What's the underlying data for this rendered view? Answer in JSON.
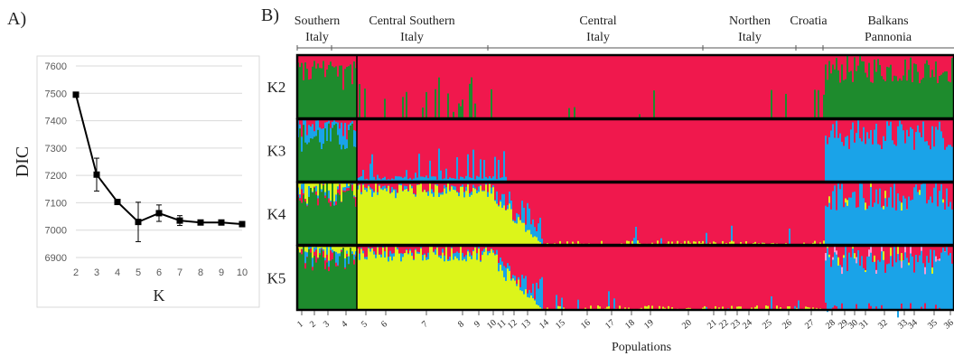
{
  "panels": {
    "a_label": "A)",
    "b_label": "B)"
  },
  "chart_data": [
    {
      "type": "line",
      "xlabel": "K",
      "ylabel": "DIC",
      "x": [
        2,
        3,
        4,
        5,
        6,
        7,
        8,
        9,
        10
      ],
      "series": [
        {
          "values": [
            7495,
            7203,
            7103,
            7030,
            7062,
            7035,
            7028,
            7028,
            7022
          ],
          "error": [
            0,
            60,
            0,
            72,
            30,
            18,
            0,
            0,
            0
          ]
        }
      ],
      "xticks": [
        "2",
        "3",
        "4",
        "5",
        "6",
        "7",
        "8",
        "9",
        "10"
      ],
      "yticks": [
        "6900",
        "7000",
        "7100",
        "7200",
        "7300",
        "7400",
        "7500",
        "7600"
      ],
      "xlim": [
        2,
        10
      ],
      "ylim": [
        6900,
        7600
      ],
      "grid": true,
      "line_color": "#000000",
      "grid_color": "#d9d9d9"
    },
    {
      "type": "bar",
      "subtype": "stacked-admixture",
      "xlabel": "Populations",
      "rows": [
        "K2",
        "K3",
        "K4",
        "K5"
      ],
      "regions": [
        {
          "label": [
            "Southern",
            "Italy"
          ]
        },
        {
          "label": [
            "Central Southern",
            "Italy"
          ]
        },
        {
          "label": [
            "Central",
            "Italy"
          ]
        },
        {
          "label": [
            "Northen",
            "Italy"
          ]
        },
        {
          "label": [
            "Croatia"
          ]
        },
        {
          "label": [
            "Balkans",
            "Pannonia"
          ]
        }
      ],
      "population_labels": [
        "1",
        "2",
        "3",
        "4",
        "5",
        "6",
        "7",
        "8",
        "9",
        "10",
        "11",
        "12",
        "13",
        "14",
        "15",
        "16",
        "17",
        "18",
        "19",
        "20",
        "21",
        "22",
        "23",
        "24",
        "25",
        "26",
        "27",
        "28",
        "29",
        "30",
        "31",
        "32",
        "33",
        "34",
        "35",
        "36"
      ],
      "colors": {
        "green": "#1e8b2d",
        "red": "#f0184d",
        "blue": "#1aa3e8",
        "yellow": "#dcf51a",
        "pink": "#f59ad6"
      },
      "approx_proportions": {
        "K2": {
          "southern": "green dominant",
          "central_to_croatia": "red",
          "balkans": "green with red admixture"
        },
        "K3": {
          "southern": "green/blue",
          "central_to_croatia": "red",
          "balkans": "blue with red admixture"
        },
        "K4": {
          "southern": "green",
          "central_southern": "yellow",
          "central_to_croatia": "red",
          "balkans": "blue"
        },
        "K5": {
          "southern": "green",
          "central_southern": "yellow",
          "central_to_croatia": "red",
          "balkans": "blue with pink"
        }
      }
    }
  ]
}
